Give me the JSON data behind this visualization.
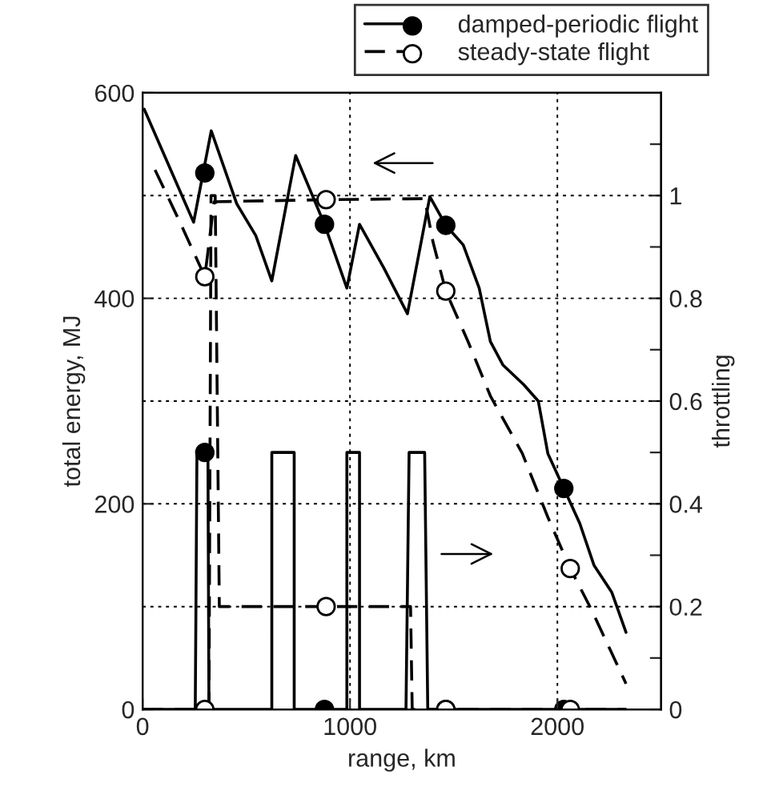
{
  "chart_data": {
    "type": "line",
    "xlabel": "range, km",
    "ylabel": "total energy, MJ",
    "y2label": "throttling",
    "xlim": [
      0,
      2500
    ],
    "xticks": [
      0,
      1000,
      2000
    ],
    "ylim": [
      0,
      600
    ],
    "yticks": [
      0,
      200,
      400,
      600
    ],
    "y2lim": [
      0,
      1.2
    ],
    "y2ticks": [
      0,
      {
        "value": 0.1,
        "label": null
      },
      0.2,
      {
        "value": 0.3,
        "label": null
      },
      0.4,
      {
        "value": 0.5,
        "label": null
      },
      0.6,
      {
        "value": 0.7,
        "label": null
      },
      0.8,
      {
        "value": 0.9,
        "label": null
      },
      1,
      {
        "value": 1.1,
        "label": null
      }
    ],
    "grid": true,
    "legend": "top right",
    "series": [
      {
        "name": "damped-periodic flight",
        "color": "#000000",
        "line_style": "solid",
        "x": [
          8,
          246,
          331,
          454,
          546,
          623,
          738,
          877,
          985,
          1046,
          1162,
          1277,
          1385,
          1462,
          1546,
          1623,
          1677,
          1738,
          1838,
          1908,
          1954,
          2031,
          2108,
          2177,
          2262,
          2331
        ],
        "values": [
          584,
          474,
          563,
          492,
          461,
          417,
          539,
          472,
          410,
          472,
          430,
          385,
          499,
          471,
          452,
          410,
          358,
          335,
          316,
          300,
          249,
          215,
          181,
          140,
          114,
          75
        ]
      },
      {
        "type": "scatter",
        "color": "#000000",
        "marker": "circle",
        "x": [
          300,
          877,
          1462,
          2031
        ],
        "values": [
          522,
          472,
          471,
          215
        ]
      },
      {
        "name": "steady-state flight",
        "color": "#000000",
        "line_style": "dashed",
        "x": [
          60,
          185,
          300,
          345,
          885,
          1360,
          1400,
          1462,
          1569,
          1677,
          1831,
          1954,
          2062,
          2162,
          2331
        ],
        "values": [
          525,
          472,
          421,
          494,
          496,
          497,
          455,
          407,
          358,
          305,
          249,
          187,
          137,
          98,
          25
        ]
      },
      {
        "type": "scatter",
        "color": "#ffffff",
        "marker": "circle",
        "x": [
          300,
          885,
          1462,
          2062
        ],
        "values": [
          421,
          496,
          407,
          137
        ]
      },
      {
        "axis": "y2",
        "color": "#000000",
        "line_style": "solid",
        "x": [
          0,
          254,
          262,
          315,
          320,
          623,
          623,
          731,
          731,
          985,
          985,
          1046,
          1046,
          1270,
          1285,
          1360,
          1375,
          2330
        ],
        "values": [
          0,
          0,
          0.5,
          0.5,
          0,
          0,
          0.5,
          0.5,
          0,
          0,
          0.5,
          0.5,
          0,
          0,
          0.5,
          0.5,
          0,
          0
        ]
      },
      {
        "type": "scatter",
        "axis": "y2",
        "color": "#000000",
        "marker": "circle",
        "x": [
          300,
          877,
          1462,
          2031
        ],
        "values": [
          0.5,
          0,
          0,
          0
        ]
      },
      {
        "axis": "y2",
        "color": "#000000",
        "line_style": "dashed",
        "x": [
          0,
          320,
          330,
          350,
          370,
          1292,
          1300,
          2330
        ],
        "values": [
          0,
          0,
          1,
          1,
          0.2,
          0.2,
          0,
          0
        ]
      },
      {
        "type": "scatter",
        "axis": "y2",
        "color": "#ffffff",
        "marker": "circle",
        "x": [
          300,
          885,
          1462,
          2062
        ],
        "values": [
          0,
          0.2,
          0,
          0
        ]
      }
    ]
  }
}
